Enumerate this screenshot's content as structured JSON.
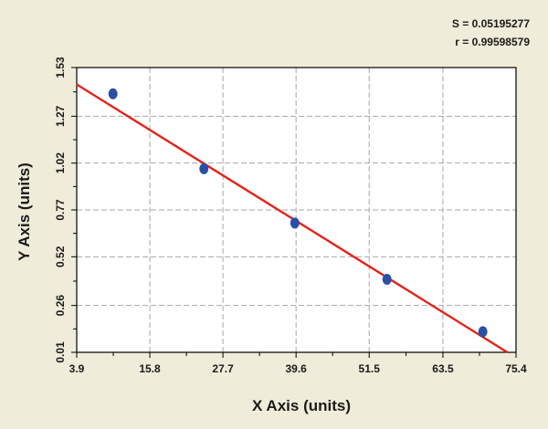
{
  "colors": {
    "background": "#efedd9",
    "plot_background": "#ffffff",
    "grid": "#a6a6a6",
    "axis": "#000000",
    "point": "#2a4fa6",
    "fit_line": "#e2231a",
    "text": "#1a1a1a"
  },
  "stats": {
    "s_text": "S = 0.05195277",
    "r_text": "r = 0.99598579"
  },
  "chart_data": {
    "type": "scatter",
    "title": "",
    "xlabel": "X Axis (units)",
    "ylabel": "Y Axis (units)",
    "xlim": [
      3.9,
      75.4
    ],
    "ylim": [
      0.01,
      1.53
    ],
    "x_ticks": [
      "3.9",
      "15.8",
      "27.7",
      "39.6",
      "51.5",
      "63.5",
      "75.4"
    ],
    "x_tick_values": [
      3.9,
      15.8,
      27.7,
      39.6,
      51.5,
      63.5,
      75.4
    ],
    "y_ticks": [
      "0.01",
      "0.26",
      "0.52",
      "0.77",
      "1.02",
      "1.27",
      "1.53"
    ],
    "y_tick_values": [
      0.01,
      0.26,
      0.52,
      0.77,
      1.02,
      1.27,
      1.53
    ],
    "grid": true,
    "series": [
      {
        "points": [
          {
            "x": 9.8,
            "y": 1.39
          },
          {
            "x": 24.6,
            "y": 0.99
          },
          {
            "x": 39.4,
            "y": 0.7
          },
          {
            "x": 54.4,
            "y": 0.4
          },
          {
            "x": 70.0,
            "y": 0.12
          }
        ]
      }
    ],
    "fit_line": {
      "start": {
        "x": 3.9,
        "y": 1.44
      },
      "end": {
        "x": 74.0,
        "y": 0.01
      }
    }
  }
}
